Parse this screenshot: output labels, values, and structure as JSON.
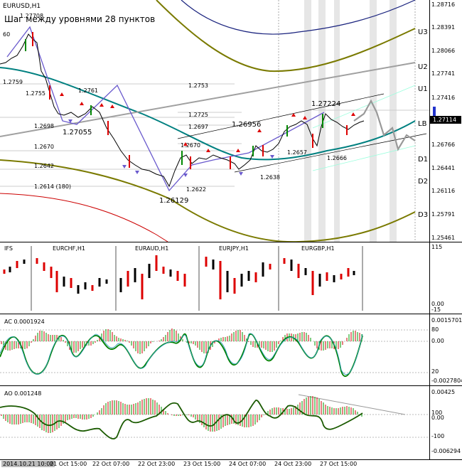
{
  "main": {
    "symbol": "EURUSD,H1",
    "note": "Шаг между уровнями 28 пунктов",
    "left_level": "60",
    "price_labels": [
      "1.27708",
      "1.2755",
      "1.2761",
      "1.2759",
      "1.2698",
      "1.27055",
      "1.2670",
      "1.2642",
      "1.2614 (180)",
      "1.2753",
      "1.2725",
      "1.2697",
      "1.2670",
      "1.26956",
      "1.27224",
      "1.2657",
      "1.2666",
      "1.2638",
      "1.2622",
      "1.26129"
    ],
    "band_labels": [
      "U3",
      "U2",
      "U1",
      "LB",
      "D1",
      "D2",
      "D3"
    ],
    "axis_ticks": [
      "1.28716",
      "1.28391",
      "1.28066",
      "1.27741",
      "1.27416",
      "1.27114",
      "1.26766",
      "1.26441",
      "1.26116",
      "1.25791",
      "1.25461"
    ],
    "current_price": "1.27114"
  },
  "basket": {
    "title": "IFS",
    "symbols": [
      "EURCHF,H1",
      "EURAUD,H1",
      "EURJPY,H1",
      "EURGBP,H1"
    ],
    "axis_ticks": [
      "115",
      "0.00",
      "-15"
    ]
  },
  "ac": {
    "title": "AC 0.0001924",
    "axis_ticks": [
      "0.0015701",
      "80",
      "0.00",
      "20",
      "-0.0027804"
    ]
  },
  "ao": {
    "title": "AO 0.001248",
    "axis_ticks": [
      "0.00425",
      "100",
      "0.00",
      "-100",
      "-0.006294"
    ]
  },
  "time_axis": [
    "2014.10.21 10:00",
    "21 Oct 15:00",
    "22 Oct 07:00",
    "22 Oct 23:00",
    "23 Oct 15:00",
    "24 Oct 07:00",
    "24 Oct 23:00",
    "27 Oct 15:00"
  ]
}
